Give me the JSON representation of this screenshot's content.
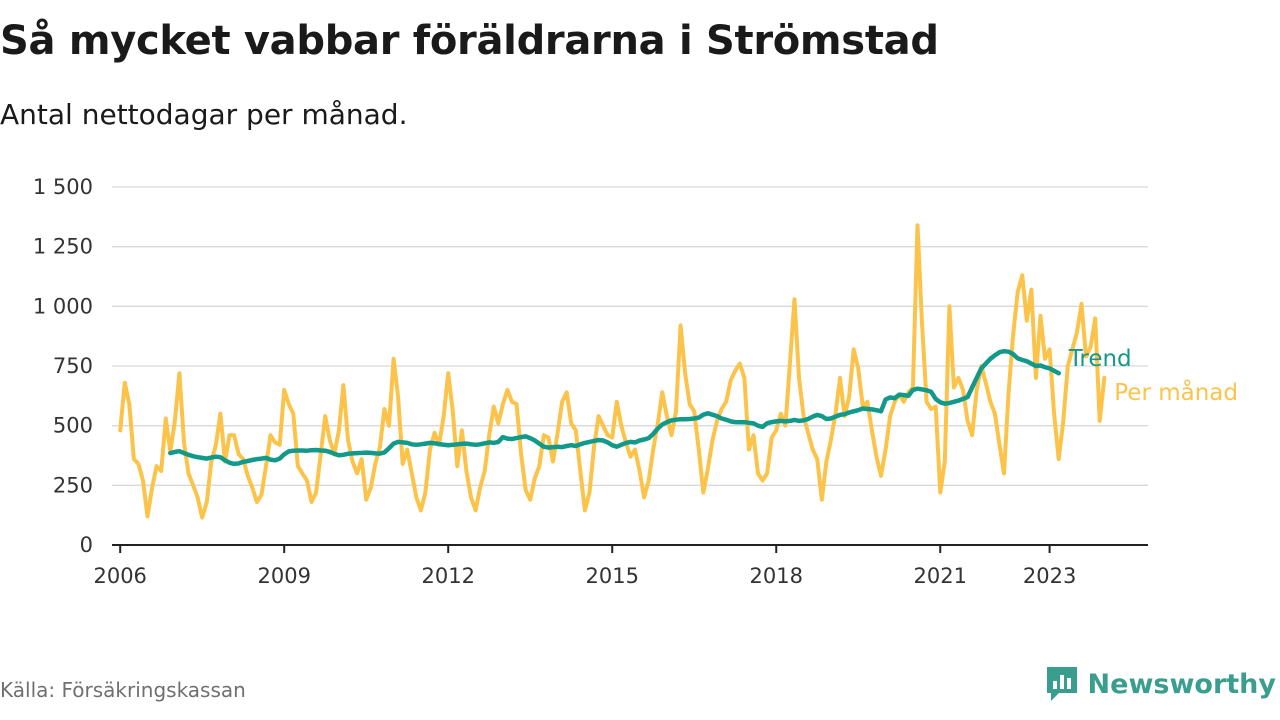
{
  "header": {
    "title": "Så mycket vabbar föräldrarna i Strömstad",
    "subtitle": "Antal nettodagar per månad."
  },
  "footer": {
    "source": "Källa: Försäkringskassan",
    "brand": "Newsworthy",
    "brand_icon": "bar-chart-speech-bubble-icon"
  },
  "colors": {
    "trend": "#13998a",
    "monthly": "#fcc34a",
    "grid": "#d9d9d9",
    "axis": "#222222"
  },
  "chart_data": {
    "type": "line",
    "title": "Så mycket vabbar föräldrarna i Strömstad",
    "subtitle": "Antal nettodagar per månad.",
    "xlabel": "",
    "ylabel": "",
    "xlim": [
      2005.85,
      2024.8
    ],
    "ylim": [
      0,
      1500
    ],
    "x_ticks": [
      2006,
      2009,
      2012,
      2015,
      2018,
      2021,
      2023
    ],
    "y_ticks": [
      0,
      250,
      500,
      750,
      1000,
      1250,
      1500
    ],
    "y_tick_labels": [
      "0",
      "250",
      "500",
      "750",
      "1 000",
      "1 250",
      "1 500"
    ],
    "grid": "horizontal",
    "legend": "direct labels at line ends, right",
    "series": [
      {
        "name": "Per månad",
        "color": "#fcc34a",
        "start": [
          2006,
          1
        ],
        "frequency": "monthly",
        "values": [
          480,
          680,
          590,
          360,
          340,
          270,
          120,
          240,
          330,
          310,
          530,
          390,
          520,
          720,
          430,
          300,
          250,
          200,
          115,
          180,
          350,
          420,
          550,
          350,
          460,
          460,
          380,
          360,
          290,
          240,
          180,
          210,
          330,
          460,
          430,
          420,
          650,
          590,
          550,
          330,
          300,
          270,
          180,
          220,
          380,
          540,
          440,
          380,
          480,
          670,
          440,
          350,
          300,
          360,
          190,
          240,
          340,
          410,
          570,
          500,
          780,
          620,
          340,
          400,
          300,
          200,
          145,
          220,
          400,
          470,
          420,
          540,
          720,
          560,
          330,
          480,
          310,
          200,
          145,
          240,
          310,
          460,
          580,
          510,
          590,
          650,
          600,
          590,
          380,
          230,
          190,
          280,
          330,
          460,
          450,
          350,
          470,
          600,
          640,
          510,
          480,
          310,
          145,
          220,
          410,
          540,
          500,
          460,
          450,
          600,
          500,
          430,
          370,
          400,
          310,
          200,
          270,
          400,
          510,
          640,
          540,
          460,
          560,
          920,
          720,
          590,
          560,
          400,
          220,
          320,
          440,
          520,
          570,
          600,
          690,
          730,
          760,
          700,
          400,
          460,
          300,
          270,
          300,
          450,
          480,
          550,
          500,
          760,
          1030,
          700,
          540,
          470,
          400,
          360,
          190,
          350,
          440,
          550,
          700,
          540,
          620,
          820,
          740,
          580,
          600,
          480,
          370,
          290,
          400,
          540,
          600,
          630,
          600,
          640,
          660,
          1340,
          930,
          600,
          570,
          580,
          220,
          350,
          1000,
          660,
          700,
          650,
          520,
          460,
          650,
          750,
          680,
          600,
          550,
          420,
          300,
          640,
          880,
          1060,
          1130,
          940,
          1070,
          700,
          960,
          780,
          820,
          550,
          360,
          520,
          750,
          820,
          890,
          1010,
          790,
          830,
          950,
          520,
          700
        ]
      },
      {
        "name": "Trend",
        "color": "#13998a",
        "start": [
          2006,
          12
        ],
        "frequency": "monthly",
        "values": [
          385,
          390,
          393,
          385,
          378,
          372,
          368,
          365,
          362,
          366,
          370,
          368,
          355,
          345,
          340,
          342,
          348,
          352,
          356,
          360,
          362,
          365,
          358,
          355,
          362,
          380,
          392,
          395,
          396,
          396,
          395,
          397,
          398,
          396,
          395,
          390,
          382,
          376,
          378,
          382,
          384,
          385,
          386,
          387,
          386,
          384,
          383,
          388,
          405,
          425,
          432,
          430,
          428,
          422,
          420,
          422,
          425,
          428,
          426,
          423,
          420,
          418,
          420,
          422,
          424,
          425,
          422,
          420,
          422,
          426,
          430,
          428,
          432,
          452,
          446,
          444,
          448,
          452,
          455,
          448,
          438,
          425,
          412,
          408,
          410,
          412,
          410,
          415,
          418,
          415,
          422,
          428,
          432,
          436,
          440,
          438,
          430,
          418,
          412,
          420,
          428,
          432,
          430,
          438,
          442,
          448,
          465,
          488,
          505,
          515,
          522,
          525,
          527,
          527,
          528,
          530,
          534,
          546,
          552,
          546,
          540,
          530,
          525,
          518,
          515,
          514,
          515,
          512,
          510,
          500,
          495,
          510,
          515,
          518,
          520,
          518,
          520,
          524,
          520,
          522,
          528,
          538,
          545,
          540,
          528,
          530,
          538,
          545,
          548,
          555,
          560,
          565,
          572,
          570,
          568,
          565,
          560,
          610,
          618,
          615,
          630,
          628,
          625,
          650,
          655,
          652,
          648,
          642,
          612,
          598,
          592,
          595,
          600,
          605,
          612,
          620,
          660,
          700,
          740,
          760,
          780,
          795,
          808,
          812,
          810,
          800,
          782,
          775,
          770,
          760,
          750,
          752,
          745,
          740,
          730,
          720
        ]
      }
    ]
  }
}
